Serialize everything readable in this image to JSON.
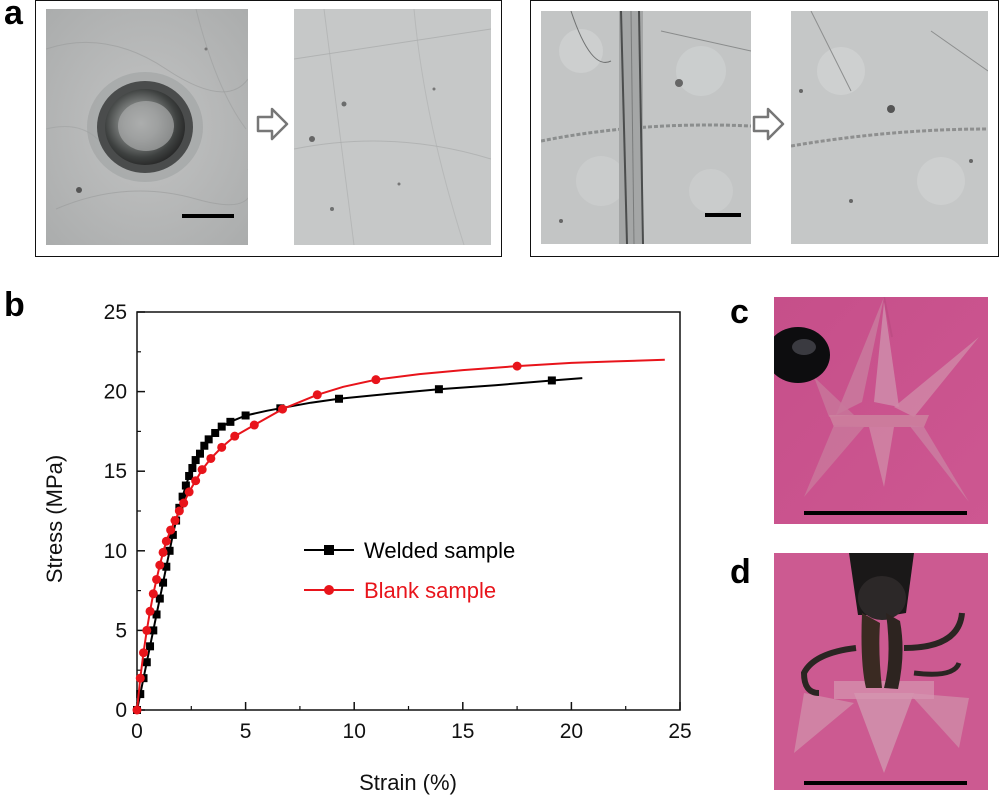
{
  "panels": {
    "a": "a",
    "b": "b",
    "c": "c",
    "d": "d"
  },
  "colors": {
    "welded": "#000000",
    "blank": "#e8141b",
    "micrograph": "#c4c6c6",
    "photo_background": "#c9508a",
    "scale_bar": "#000000"
  },
  "icons": {
    "transition_arrow": "outlined-right-arrow-icon"
  },
  "chart_data": {
    "type": "line",
    "xlabel": "Strain (%)",
    "ylabel": "Stress (MPa)",
    "xlim": [
      0,
      25
    ],
    "ylim": [
      0,
      25
    ],
    "xticks": [
      "0",
      "5",
      "10",
      "15",
      "20",
      "25"
    ],
    "yticks": [
      "0",
      "5",
      "10",
      "15",
      "20",
      "25"
    ],
    "grid": false,
    "legend_position": "center-right",
    "series": [
      {
        "name": "Welded sample",
        "marker": "square",
        "x": [
          0,
          0.15,
          0.3,
          0.45,
          0.6,
          0.75,
          0.9,
          1.05,
          1.2,
          1.35,
          1.5,
          1.65,
          1.8,
          1.95,
          2.1,
          2.25,
          2.4,
          2.55,
          2.7,
          2.9,
          3.1,
          3.3,
          3.6,
          3.9,
          4.3,
          5.0,
          6.0,
          7.0,
          8.0,
          9.3,
          11.5,
          13.9,
          16.5,
          19.1,
          20.5
        ],
        "y": [
          0,
          1.0,
          2.0,
          3.0,
          4.0,
          5.0,
          6.0,
          7.0,
          8.0,
          9.0,
          10.0,
          11.0,
          11.9,
          12.7,
          13.4,
          14.1,
          14.7,
          15.2,
          15.7,
          16.1,
          16.6,
          17.0,
          17.4,
          17.8,
          18.1,
          18.5,
          18.8,
          19.05,
          19.3,
          19.55,
          19.85,
          20.15,
          20.4,
          20.7,
          20.85
        ],
        "marked": [
          0,
          0.15,
          0.3,
          0.45,
          0.6,
          0.75,
          0.9,
          1.05,
          1.2,
          1.35,
          1.5,
          1.65,
          1.8,
          1.95,
          2.1,
          2.25,
          2.4,
          2.55,
          2.7,
          2.9,
          3.1,
          3.3,
          3.6,
          3.9,
          4.3,
          5.0,
          6.6,
          9.3,
          13.9,
          19.1
        ]
      },
      {
        "name": "Blank sample",
        "marker": "circle",
        "x": [
          0,
          0.15,
          0.3,
          0.45,
          0.6,
          0.75,
          0.9,
          1.05,
          1.2,
          1.35,
          1.55,
          1.75,
          1.95,
          2.15,
          2.4,
          2.7,
          3.0,
          3.4,
          3.9,
          4.5,
          5.4,
          6.7,
          8.3,
          9.5,
          11.0,
          13.0,
          15.0,
          17.5,
          20.0,
          22.0,
          24.3
        ],
        "y": [
          0,
          2.0,
          3.6,
          5.0,
          6.2,
          7.3,
          8.2,
          9.1,
          9.9,
          10.6,
          11.3,
          11.9,
          12.5,
          13.0,
          13.7,
          14.4,
          15.1,
          15.8,
          16.5,
          17.2,
          17.9,
          18.9,
          19.8,
          20.3,
          20.75,
          21.1,
          21.35,
          21.6,
          21.8,
          21.9,
          22.0
        ],
        "marked": [
          0,
          0.15,
          0.3,
          0.45,
          0.6,
          0.75,
          0.9,
          1.05,
          1.2,
          1.35,
          1.55,
          1.75,
          1.95,
          2.15,
          2.4,
          2.7,
          3.0,
          3.4,
          3.9,
          4.5,
          5.4,
          6.7,
          8.3,
          11.0,
          17.5
        ]
      }
    ]
  }
}
